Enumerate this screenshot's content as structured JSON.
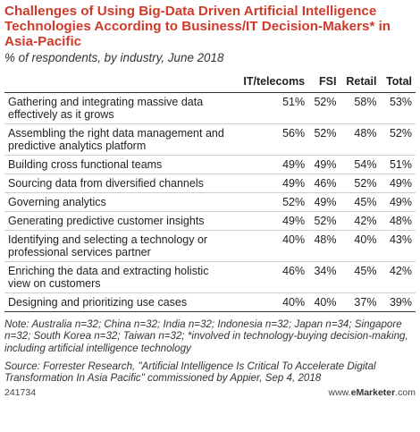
{
  "chart_data": {
    "type": "table",
    "title": "Challenges of Using Big-Data Driven Artificial Intelligence Technologies According to Business/IT Decision-Makers* in Asia-Pacific",
    "subtitle": "% of respondents, by industry, June 2018",
    "columns": [
      "IT/telecoms",
      "FSI",
      "Retail",
      "Total"
    ],
    "rows": [
      {
        "label": "Gathering and integrating massive data effectively as it grows",
        "values": [
          "51%",
          "52%",
          "58%",
          "53%"
        ]
      },
      {
        "label": "Assembling the right data management and predictive analytics platform",
        "values": [
          "56%",
          "52%",
          "48%",
          "52%"
        ]
      },
      {
        "label": "Building cross functional teams",
        "values": [
          "49%",
          "49%",
          "54%",
          "51%"
        ]
      },
      {
        "label": "Sourcing data from diversified channels",
        "values": [
          "49%",
          "46%",
          "52%",
          "49%"
        ]
      },
      {
        "label": "Governing analytics",
        "values": [
          "52%",
          "49%",
          "45%",
          "49%"
        ]
      },
      {
        "label": "Generating predictive customer insights",
        "values": [
          "49%",
          "52%",
          "42%",
          "48%"
        ]
      },
      {
        "label": "Identifying and selecting a technology or professional services partner",
        "values": [
          "40%",
          "48%",
          "40%",
          "43%"
        ]
      },
      {
        "label": "Enriching the data and extracting holistic view on customers",
        "values": [
          "46%",
          "34%",
          "45%",
          "42%"
        ]
      },
      {
        "label": "Designing and prioritizing use cases",
        "values": [
          "40%",
          "40%",
          "37%",
          "39%"
        ]
      }
    ]
  },
  "note": "Note: Australia n=32; China n=32; India n=32; Indonesia n=32; Japan n=34; Singapore n=32; South Korea n=32; Taiwan n=32; *involved in technology-buying decision-making, including artificial intelligence technology",
  "source": "Source: Forrester Research, \"Artificial Intelligence Is Critical To Accelerate Digital Transformation In Asia Pacific\" commissioned by Appier, Sep 4, 2018",
  "footer": {
    "id": "241734",
    "brand_prefix": "www.",
    "brand_name": "eMarketer",
    "brand_suffix": ".com"
  }
}
